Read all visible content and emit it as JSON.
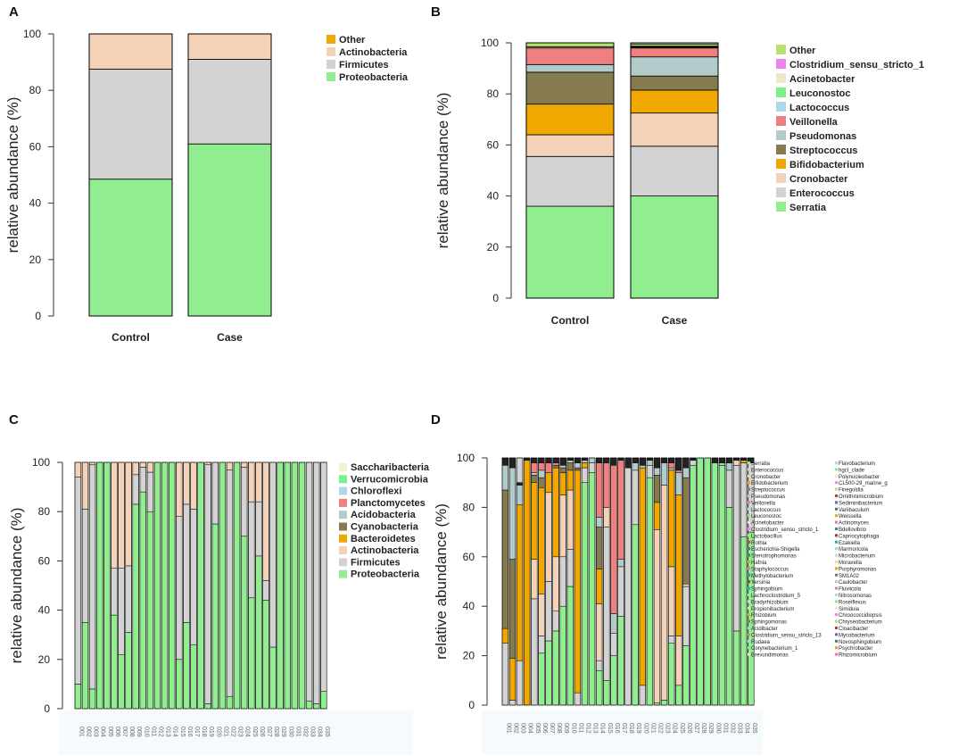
{
  "chart_data": [
    {
      "panel": "A",
      "type": "bar",
      "stacked": true,
      "ylabel": "relative abundance (%)",
      "ylim": [
        0,
        100
      ],
      "yticks": [
        0,
        20,
        40,
        60,
        80,
        100
      ],
      "categories": [
        "Control",
        "Case"
      ],
      "series": [
        {
          "name": "Proteobacteria",
          "color": "#90EE90",
          "values": [
            48.5,
            61
          ]
        },
        {
          "name": "Firmicutes",
          "color": "#D3D3D3",
          "values": [
            39,
            30
          ]
        },
        {
          "name": "Actinobacteria",
          "color": "#F3D2B8",
          "values": [
            12.5,
            9
          ]
        },
        {
          "name": "Other",
          "color": "#F0A800",
          "values": [
            0,
            0
          ]
        }
      ]
    },
    {
      "panel": "B",
      "type": "bar",
      "stacked": true,
      "ylabel": "relative abundance (%)",
      "ylim": [
        0,
        100
      ],
      "yticks": [
        0,
        20,
        40,
        60,
        80,
        100
      ],
      "categories": [
        "Control",
        "Case"
      ],
      "series": [
        {
          "name": "Serratia",
          "color": "#90EE90",
          "values": [
            36,
            40
          ]
        },
        {
          "name": "Enterococcus",
          "color": "#D3D3D3",
          "values": [
            19.5,
            19.5
          ]
        },
        {
          "name": "Cronobacter",
          "color": "#F3D2B8",
          "values": [
            8.5,
            13
          ]
        },
        {
          "name": "Bifidobacterium",
          "color": "#F0A800",
          "values": [
            12,
            9
          ]
        },
        {
          "name": "Streptococcus",
          "color": "#857B4F",
          "values": [
            12.5,
            5.5
          ]
        },
        {
          "name": "Pseudomonas",
          "color": "#B2CCCC",
          "values": [
            3,
            7.5
          ]
        },
        {
          "name": "Veillonella",
          "color": "#F08080",
          "values": [
            6.5,
            3.5
          ]
        },
        {
          "name": "Lactococcus",
          "color": "#ADD8E6",
          "values": [
            0,
            0.3
          ]
        },
        {
          "name": "Leuconostoc",
          "color": "#7CF08A",
          "values": [
            0,
            0
          ]
        },
        {
          "name": "Acinetobacter",
          "color": "#EEE8C8",
          "values": [
            0.5,
            0.2
          ]
        },
        {
          "name": "Clostridium_sensu_stricto_1",
          "color": "#EE82EE",
          "values": [
            0,
            0.2
          ]
        },
        {
          "name": "Other",
          "color": "#B5E36B",
          "values": [
            1.5,
            0.8
          ]
        }
      ]
    },
    {
      "panel": "C",
      "type": "bar",
      "stacked": true,
      "ylabel": "relative abundance (%)",
      "ylim": [
        0,
        100
      ],
      "yticks": [
        0,
        20,
        40,
        60,
        80,
        100
      ],
      "categories": [
        "001",
        "002",
        "003",
        "004",
        "005",
        "006",
        "007",
        "008",
        "009",
        "010",
        "011",
        "012",
        "013",
        "014",
        "015",
        "016",
        "017",
        "018",
        "019",
        "020",
        "021",
        "022",
        "023",
        "024",
        "025",
        "026",
        "027",
        "028",
        "029",
        "030",
        "031",
        "032",
        "033",
        "034",
        "035"
      ],
      "legend": [
        "Saccharibacteria",
        "Verrucomicrobia",
        "Chloroflexi",
        "Planctomycetes",
        "Acidobacteria",
        "Cyanobacteria",
        "Bacteroidetes",
        "Actinobacteria",
        "Firmicutes",
        "Proteobacteria"
      ],
      "legend_colors": [
        "#F5F0D0",
        "#7CF08A",
        "#ADD8E6",
        "#F08080",
        "#B2CCCC",
        "#857B4F",
        "#F0A800",
        "#F3D2B8",
        "#D3D3D3",
        "#90EE90"
      ],
      "series": [
        {
          "name": "Proteobacteria",
          "color": "#90EE90",
          "values": [
            10,
            35,
            8,
            100,
            100,
            38,
            22,
            31,
            83,
            88,
            80,
            100,
            100,
            100,
            20,
            35,
            26,
            100,
            2,
            75,
            100,
            5,
            100,
            70,
            45,
            62,
            44,
            25,
            100,
            100,
            100,
            100,
            3,
            2,
            7
          ]
        },
        {
          "name": "Firmicutes",
          "color": "#D3D3D3",
          "values": [
            84,
            46,
            91,
            0,
            0,
            19,
            35,
            27,
            12,
            10,
            16,
            0,
            0,
            0,
            58,
            48,
            55,
            0,
            97,
            25,
            0,
            92,
            0,
            28,
            39,
            22,
            8,
            75,
            0,
            0,
            0,
            0,
            97,
            98,
            93
          ]
        },
        {
          "name": "Actinobacteria",
          "color": "#F3D2B8",
          "values": [
            6,
            19,
            1,
            0,
            0,
            43,
            43,
            42,
            5,
            2,
            4,
            0,
            0,
            0,
            22,
            17,
            19,
            0,
            1,
            0,
            0,
            3,
            0,
            2,
            16,
            16,
            48,
            0,
            0,
            0,
            0,
            0,
            0,
            0,
            0
          ]
        }
      ]
    },
    {
      "panel": "D",
      "type": "bar",
      "stacked": true,
      "ylabel": "relative abundance (%)",
      "ylim": [
        0,
        100
      ],
      "yticks": [
        0,
        20,
        40,
        60,
        80,
        100
      ],
      "categories": [
        "001",
        "002",
        "003",
        "004",
        "005",
        "006",
        "007",
        "008",
        "009",
        "010",
        "011",
        "012",
        "013",
        "014",
        "015",
        "016",
        "017",
        "018",
        "019",
        "020",
        "021",
        "022",
        "023",
        "024",
        "025",
        "026",
        "027",
        "028",
        "029",
        "030",
        "031",
        "032",
        "033",
        "034",
        "035"
      ],
      "legend_col1": [
        "Serratia",
        "Enterococcus",
        "Cronobacter",
        "Bifidobacterium",
        "Streptococcus",
        "Pseudomonas",
        "Veillonella",
        "Lactococcus",
        "Leuconostoc",
        "Acinetobacter",
        "Clostridium_sensu_stricto_1",
        "Lactobacillus",
        "Rothia",
        "Escherichia-Shigella",
        "Stenotrophomonas",
        "Hafnia",
        "Staphylococcus",
        "Methylobacterium",
        "Yersinia",
        "Sphingobium",
        "Lachnoclostridium_5",
        "Bradyrhizobium",
        "Propionibacterium",
        "Rhizobium",
        "Sphingomonas",
        "Acidibacter",
        "Clostridium_sensu_stricto_13",
        "Rudaea",
        "Corynebacterium_1",
        "Brevundimonas"
      ],
      "legend_col2": [
        "Flavobacterium",
        "hgcI_clade",
        "Polynucleobacter",
        "CL500-29_marine_g",
        "Finegoldia",
        "Ornithinimicrobium",
        "Sediminibacterium",
        "Variibaculum",
        "Weissella",
        "Actinomyces",
        "Bdellovibrio",
        "Capnocytophaga",
        "Ezakiella",
        "Marmoricola",
        "Microbacterium",
        "Moraxella",
        "Porphyromonas",
        "SM1A02",
        "Caulobacter",
        "Fluviicola",
        "Nitrosomonas",
        "Roseiflexus",
        "Simiduia",
        "Chroococcidiopsis",
        "Chryseobacterium",
        "Cloacibacter",
        "Mycobacterium",
        "Novosphingobium",
        "Psychrobacter",
        "Rhizomicrobium"
      ],
      "series": [
        {
          "name": "Serratia",
          "color": "#90EE90",
          "values": [
            0,
            0,
            0,
            0,
            0,
            21,
            26,
            30,
            40,
            48,
            0,
            90,
            94,
            14,
            10,
            20,
            36,
            0,
            73,
            0,
            92,
            1,
            2,
            25,
            8,
            24,
            97,
            100,
            100,
            98,
            97,
            80,
            30,
            68,
            70
          ]
        },
        {
          "name": "Enterococcus",
          "color": "#D3D3D3",
          "values": [
            25,
            2,
            18,
            0,
            43,
            7,
            24,
            8,
            20,
            15,
            5,
            6,
            4,
            4,
            62,
            9,
            20,
            96,
            22,
            8,
            5,
            0,
            0,
            3,
            0,
            24,
            2,
            0,
            0,
            0,
            0,
            15,
            67,
            30,
            28
          ]
        },
        {
          "name": "Cronobacter",
          "color": "#F3D2B8",
          "values": [
            0,
            0,
            0,
            0,
            16,
            17,
            36,
            22,
            25,
            24,
            0,
            0,
            0,
            23,
            8,
            0,
            0,
            0,
            0,
            0,
            0,
            70,
            87,
            28,
            20,
            1,
            0,
            0,
            0,
            0,
            0,
            0,
            2,
            0,
            0
          ]
        },
        {
          "name": "Bifidobacterium",
          "color": "#F0A800",
          "values": [
            6,
            17,
            63,
            99,
            31,
            43,
            8,
            36,
            9,
            8,
            90,
            2,
            0,
            14,
            0,
            0,
            0,
            0,
            0,
            88,
            0,
            11,
            0,
            39,
            57,
            0,
            0,
            0,
            0,
            0,
            0,
            0,
            0,
            1,
            0
          ]
        },
        {
          "name": "Streptococcus",
          "color": "#857B4F",
          "values": [
            56,
            40,
            0,
            0,
            3,
            4,
            0,
            1,
            2,
            3,
            1,
            0,
            0,
            17,
            0,
            0,
            0,
            0,
            0,
            0,
            0,
            11,
            0,
            0,
            0,
            43,
            0,
            0,
            0,
            0,
            0,
            0,
            0,
            0,
            0
          ]
        },
        {
          "name": "Pseudomonas",
          "color": "#B2CCCC",
          "values": [
            10,
            37,
            8,
            0,
            1,
            3,
            0,
            0,
            1,
            1,
            2,
            1,
            2,
            4,
            0,
            8,
            3,
            0,
            3,
            1,
            2,
            3,
            9,
            1,
            9,
            4,
            0,
            0,
            0,
            0,
            1,
            3,
            0,
            0,
            0
          ]
        },
        {
          "name": "Veillonella",
          "color": "#F08080",
          "values": [
            0,
            0,
            0,
            0,
            4,
            3,
            4,
            1,
            0,
            0,
            0,
            0,
            2,
            22,
            18,
            60,
            40,
            0,
            0,
            0,
            0,
            0,
            0,
            2,
            1,
            0,
            0,
            0,
            0,
            0,
            0,
            0,
            0,
            0,
            0
          ]
        },
        {
          "name": "Other",
          "color": "#222222",
          "values": [
            3,
            4,
            1,
            1,
            2,
            2,
            2,
            2,
            3,
            1,
            2,
            1,
            2,
            2,
            2,
            3,
            1,
            4,
            2,
            3,
            1,
            4,
            2,
            2,
            5,
            4,
            1,
            0,
            0,
            2,
            2,
            2,
            1,
            1,
            2
          ]
        }
      ]
    }
  ]
}
